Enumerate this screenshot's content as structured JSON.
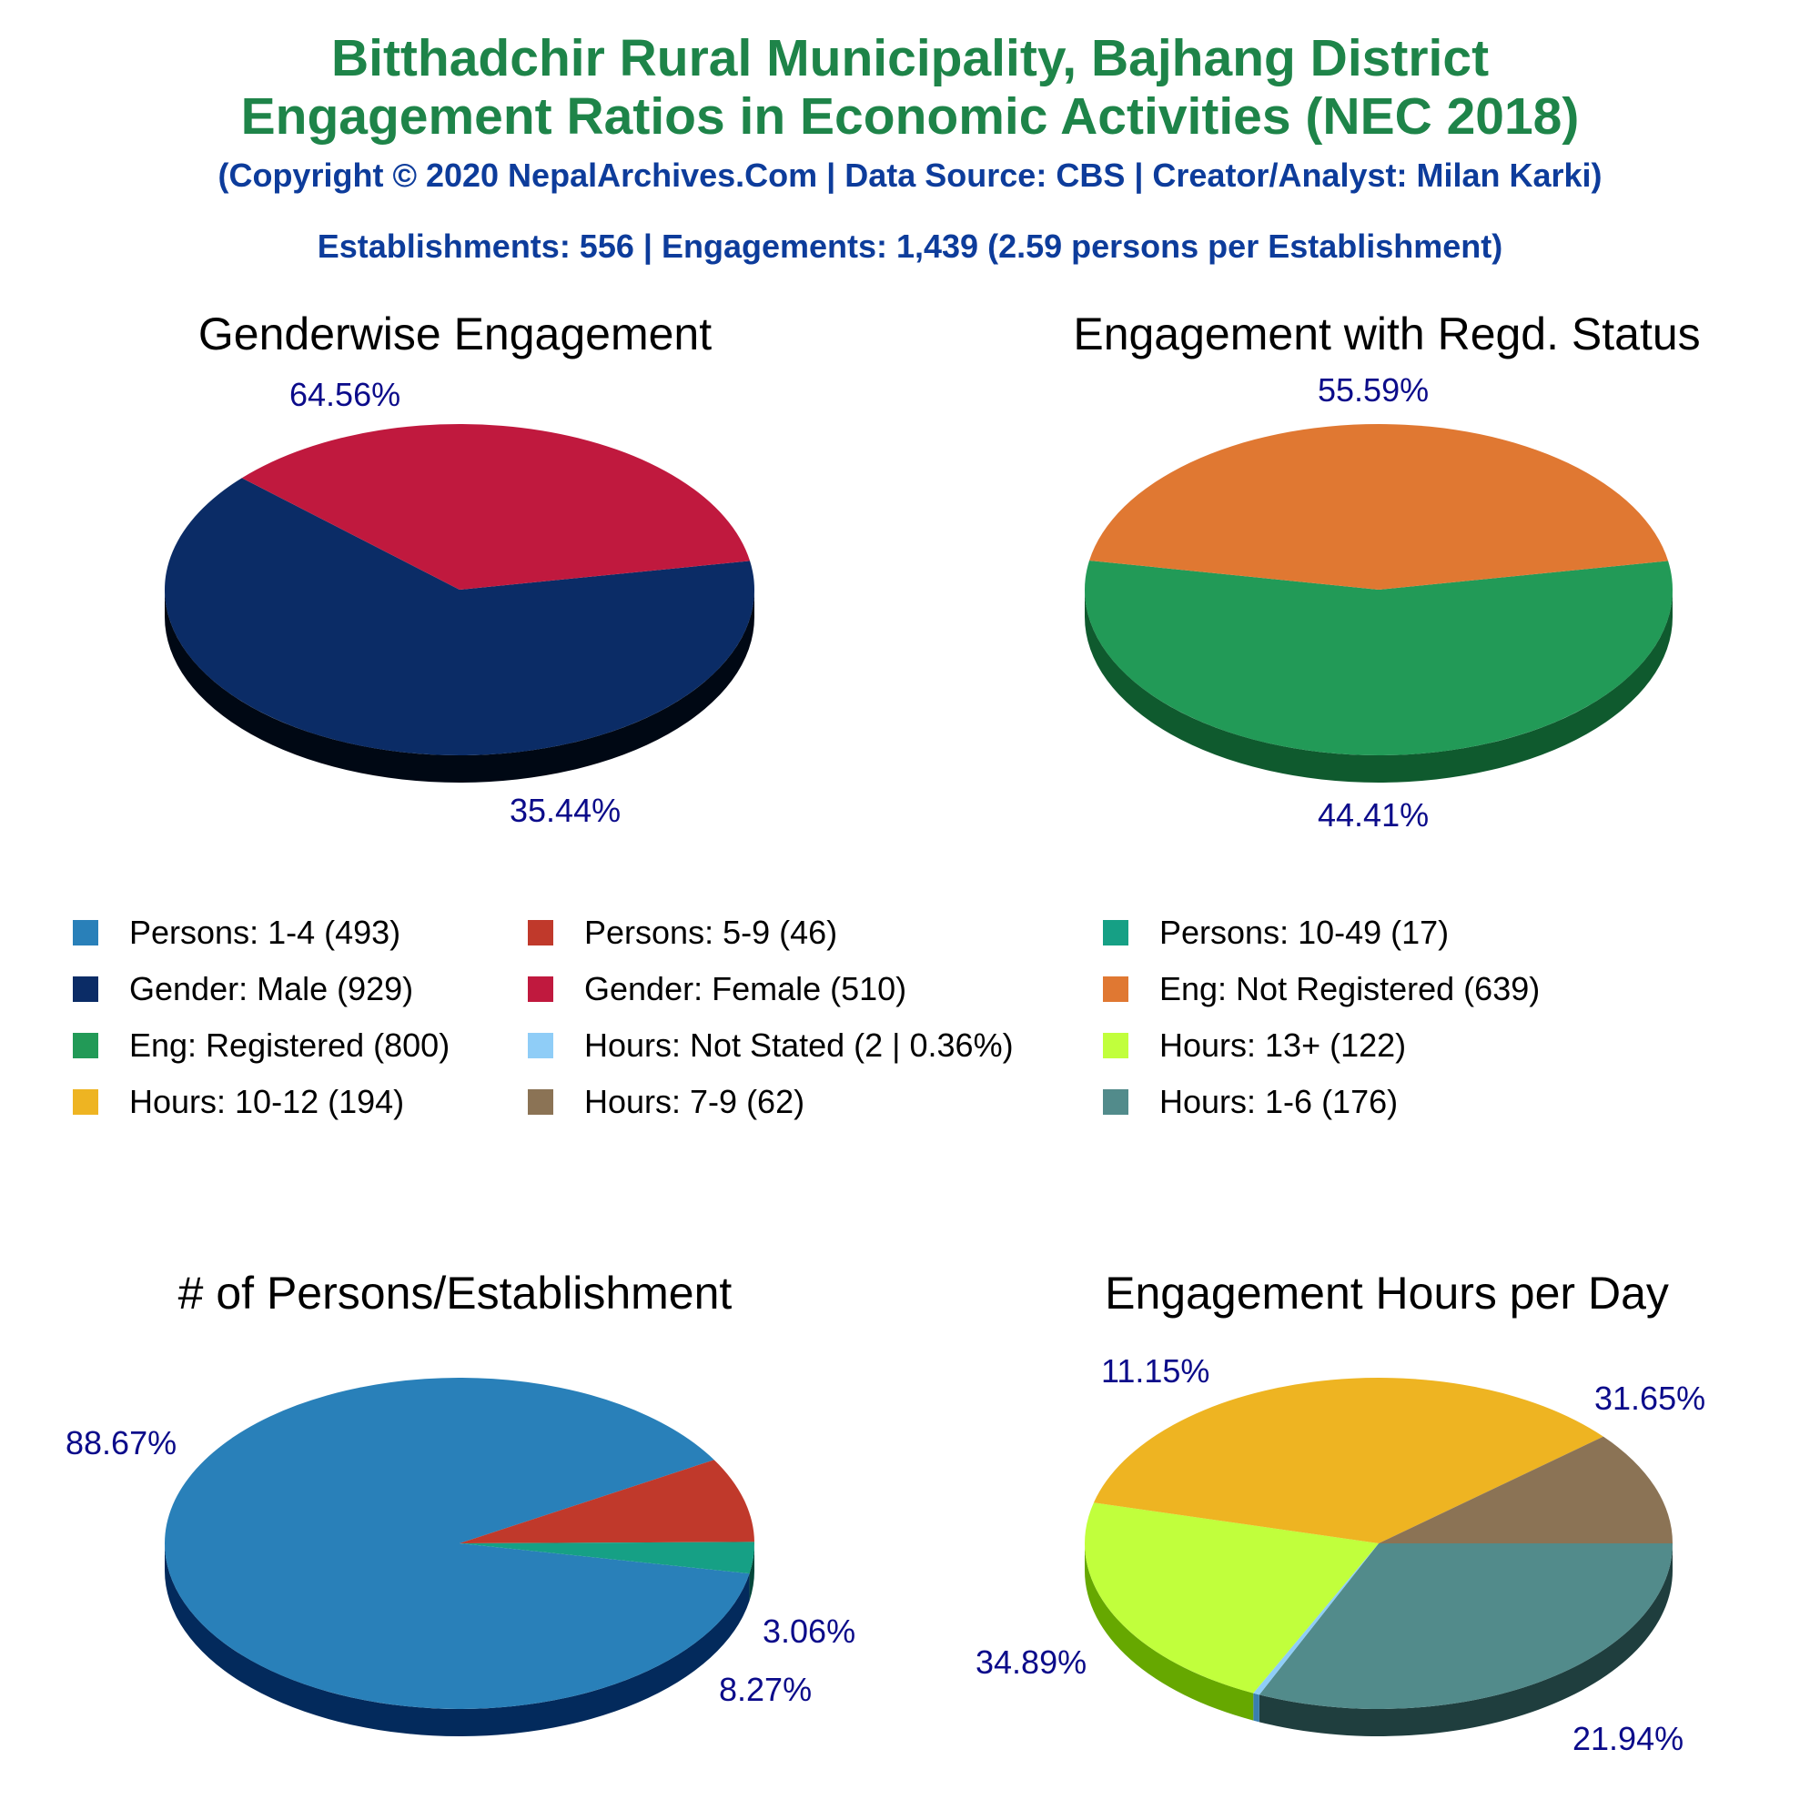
{
  "header": {
    "title_line1": "Bitthadchir Rural Municipality, Bajhang District",
    "title_line2": "Engagement Ratios in Economic Activities (NEC 2018)",
    "copyright": "(Copyright © 2020 NepalArchives.Com | Data Source: CBS | Creator/Analyst: Milan Karki)",
    "summary": "Establishments: 556 | Engagements: 1,439 (2.59 persons per Establishment)"
  },
  "legend": [
    {
      "label": "Persons: 1-4 (493)",
      "color": "#2980b9"
    },
    {
      "label": "Persons: 5-9 (46)",
      "color": "#c0392b"
    },
    {
      "label": "Persons: 10-49 (17)",
      "color": "#16a085"
    },
    {
      "label": "Gender: Male (929)",
      "color": "#0b2c66"
    },
    {
      "label": "Gender: Female (510)",
      "color": "#c0193e"
    },
    {
      "label": "Eng: Not Registered (639)",
      "color": "#e07832"
    },
    {
      "label": "Eng: Registered (800)",
      "color": "#229a57"
    },
    {
      "label": "Hours: Not Stated (2 | 0.36%)",
      "color": "#8fcdf7"
    },
    {
      "label": "Hours: 13+ (122)",
      "color": "#c1ff3c"
    },
    {
      "label": "Hours: 10-12 (194)",
      "color": "#eeb422"
    },
    {
      "label": "Hours: 7-9 (62)",
      "color": "#8b7355"
    },
    {
      "label": "Hours: 1-6 (176)",
      "color": "#528b8b"
    }
  ],
  "chart_data": [
    {
      "type": "pie",
      "title": "Genderwise Engagement",
      "slices": [
        {
          "name": "Gender: Male",
          "value": 929,
          "percent_label": "64.56%",
          "color": "#0b2c66",
          "side": "#000814"
        },
        {
          "name": "Gender: Female",
          "value": 510,
          "percent_label": "35.44%",
          "color": "#c0193e",
          "side": "#660000"
        }
      ]
    },
    {
      "type": "pie",
      "title": "Engagement with Regd. Status",
      "slices": [
        {
          "name": "Eng: Registered",
          "value": 800,
          "percent_label": "55.59%",
          "color": "#229a57",
          "side": "#0f5a2e"
        },
        {
          "name": "Eng: Not Registered",
          "value": 639,
          "percent_label": "44.41%",
          "color": "#e07832",
          "side": "#7a1a00"
        }
      ]
    },
    {
      "type": "pie",
      "title": "# of Persons/Establishment",
      "slices": [
        {
          "name": "Persons: 1-4",
          "value": 493,
          "percent_label": "88.67%",
          "color": "#2980b9",
          "side": "#032a5c"
        },
        {
          "name": "Persons: 5-9",
          "value": 46,
          "percent_label": "8.27%",
          "color": "#c0392b",
          "side": "#6b0000"
        },
        {
          "name": "Persons: 10-49",
          "value": 17,
          "percent_label": "3.06%",
          "color": "#16a085",
          "side": "#04473a"
        }
      ]
    },
    {
      "type": "pie",
      "title": "Engagement Hours per Day",
      "slices": [
        {
          "name": "Hours: 1-6",
          "value": 176,
          "percent_label": "31.65%",
          "color": "#528b8b",
          "side": "#1f3e3e"
        },
        {
          "name": "Hours: Not Stated",
          "value": 2,
          "percent_label": "",
          "color": "#8fcdf7",
          "side": "#3a7fae"
        },
        {
          "name": "Hours: 13+",
          "value": 122,
          "percent_label": "21.94%",
          "color": "#c1ff3c",
          "side": "#66a800"
        },
        {
          "name": "Hours: 10-12",
          "value": 194,
          "percent_label": "34.89%",
          "color": "#eeb422",
          "side": "#8f5a00"
        },
        {
          "name": "Hours: 7-9",
          "value": 62,
          "percent_label": "11.15%",
          "color": "#8b7355",
          "side": "#4a3a26"
        }
      ]
    }
  ]
}
